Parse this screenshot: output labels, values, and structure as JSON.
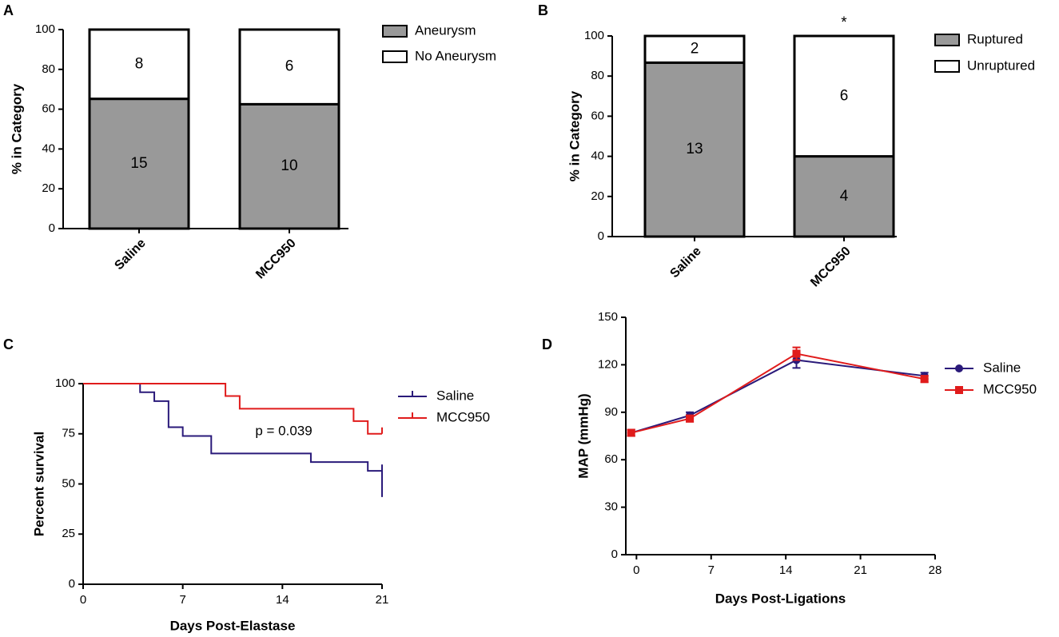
{
  "colors": {
    "filled": "#999999",
    "empty": "#ffffff",
    "axis": "#000000",
    "saline": "#2a1a7a",
    "mcc950": "#e01b1b"
  },
  "chart_data": [
    {
      "panel": "A",
      "type": "bar",
      "stacked": true,
      "ylabel": "% in Category",
      "ylim": [
        0,
        100
      ],
      "yticks": [
        "0",
        "20",
        "40",
        "60",
        "80",
        "100"
      ],
      "categories": [
        "Saline",
        "MCC950"
      ],
      "series": [
        {
          "name": "Aneurysm",
          "values": [
            65.2,
            62.5
          ],
          "counts": [
            "15",
            "10"
          ],
          "fill": "filled"
        },
        {
          "name": "No Aneurysm",
          "values": [
            34.8,
            37.5
          ],
          "counts": [
            "8",
            "6"
          ],
          "fill": "empty"
        }
      ],
      "legend": [
        "Aneurysm",
        "No Aneurysm"
      ],
      "significance": [
        "",
        ""
      ]
    },
    {
      "panel": "B",
      "type": "bar",
      "stacked": true,
      "ylabel": "% in Category",
      "ylim": [
        0,
        100
      ],
      "yticks": [
        "0",
        "20",
        "40",
        "60",
        "80",
        "100"
      ],
      "categories": [
        "Saline",
        "MCC950"
      ],
      "series": [
        {
          "name": "Ruptured",
          "values": [
            86.7,
            40
          ],
          "counts": [
            "13",
            "4"
          ],
          "fill": "filled"
        },
        {
          "name": "Unruptured",
          "values": [
            13.3,
            60
          ],
          "counts": [
            "2",
            "6"
          ],
          "fill": "empty"
        }
      ],
      "legend": [
        "Ruptured",
        "Unruptured"
      ],
      "significance": [
        "",
        "*"
      ]
    },
    {
      "panel": "C",
      "type": "line",
      "step": true,
      "xlabel": "Days Post-Elastase",
      "ylabel": "Percent survival",
      "xlim": [
        0,
        21
      ],
      "ylim": [
        0,
        100
      ],
      "xticks": [
        "0",
        "7",
        "14",
        "21"
      ],
      "yticks": [
        "0",
        "25",
        "50",
        "75",
        "100"
      ],
      "annotation": "p = 0.039",
      "series": [
        {
          "name": "Saline",
          "color": "saline",
          "x": [
            0,
            4,
            5,
            6,
            7,
            9,
            16,
            20,
            21
          ],
          "y": [
            100,
            95.7,
            91.3,
            78.3,
            73.9,
            65.2,
            60.9,
            56.5,
            43.5
          ],
          "censor": [
            [
              21,
              56.5
            ]
          ]
        },
        {
          "name": "MCC950",
          "color": "mcc950",
          "x": [
            0,
            10,
            11,
            19,
            20,
            21
          ],
          "y": [
            100,
            93.8,
            87.5,
            81.3,
            75,
            75
          ],
          "censor": [
            [
              21,
              75
            ]
          ]
        }
      ]
    },
    {
      "panel": "D",
      "type": "line",
      "xlabel": "Days Post-Ligations",
      "ylabel": "MAP (mmHg)",
      "xlim": [
        -1,
        28
      ],
      "ylim": [
        0,
        150
      ],
      "xticks": [
        "0",
        "7",
        "14",
        "21",
        "28"
      ],
      "yticks": [
        "0",
        "30",
        "60",
        "90",
        "120",
        "150"
      ],
      "series": [
        {
          "name": "Saline",
          "color": "saline",
          "marker": "circle",
          "x": [
            -0.5,
            5,
            15,
            27
          ],
          "y": [
            77,
            88,
            123,
            113
          ],
          "err": [
            2,
            2,
            5,
            2
          ]
        },
        {
          "name": "MCC950",
          "color": "mcc950",
          "marker": "square",
          "x": [
            -0.5,
            5,
            15,
            27
          ],
          "y": [
            77,
            86,
            127,
            111
          ],
          "err": [
            2,
            2,
            4,
            2
          ]
        }
      ]
    }
  ]
}
